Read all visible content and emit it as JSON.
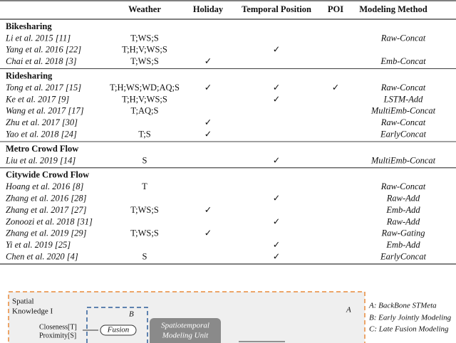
{
  "table": {
    "header": {
      "weather": "Weather",
      "holiday": "Holiday",
      "temporal": "Temporal Position",
      "poi": "POI",
      "method": "Modeling Method"
    },
    "sections": [
      {
        "title": "Bikesharing",
        "rows": [
          {
            "ref": "Li et al. 2015 [11]",
            "weather": "T;WS;S",
            "method": "Raw-Concat"
          },
          {
            "ref": "Yang et al. 2016 [22]",
            "weather": "T;H;V;WS;S",
            "temporal": "✓"
          },
          {
            "ref": "Chai et al. 2018 [3]",
            "weather": "T;WS;S",
            "holiday": "✓",
            "method": "Emb-Concat"
          }
        ]
      },
      {
        "title": "Ridesharing",
        "rows": [
          {
            "ref": "Tong et al. 2017 [15]",
            "weather": "T;H;WS;WD;AQ;S",
            "holiday": "✓",
            "temporal": "✓",
            "poi": "✓",
            "method": "Raw-Concat"
          },
          {
            "ref": "Ke et al. 2017 [9]",
            "weather": "T;H;V;WS;S",
            "temporal": "✓",
            "method": "LSTM-Add"
          },
          {
            "ref": "Wang et al. 2017 [17]",
            "weather": "T;AQ;S",
            "method": "MultiEmb-Concat"
          },
          {
            "ref": "Zhu et al. 2017 [30]",
            "holiday": "✓",
            "method": "Raw-Concat"
          },
          {
            "ref": "Yao et al. 2018 [24]",
            "weather": "T;S",
            "holiday": "✓",
            "method": "EarlyConcat"
          }
        ]
      },
      {
        "title": "Metro Crowd Flow",
        "rows": [
          {
            "ref": "Liu et al. 2019 [14]",
            "weather": "S",
            "temporal": "✓",
            "method": "MultiEmb-Concat"
          }
        ]
      },
      {
        "title": "Citywide Crowd Flow",
        "rows": [
          {
            "ref": "Hoang et al. 2016 [8]",
            "weather": "T",
            "method": "Raw-Concat"
          },
          {
            "ref": "Zhang et al. 2016 [28]",
            "temporal": "✓",
            "method": "Raw-Add"
          },
          {
            "ref": "Zhang et al. 2017 [27]",
            "weather": "T;WS;S",
            "holiday": "✓",
            "method": "Emb-Add"
          },
          {
            "ref": "Zonoozi et al. 2018 [31]",
            "temporal": "✓",
            "method": "Raw-Add"
          },
          {
            "ref": "Zhang et al. 2019 [29]",
            "weather": "T;WS;S",
            "holiday": "✓",
            "method": "Raw-Gating"
          },
          {
            "ref": "Yi et al. 2019 [25]",
            "temporal": "✓",
            "method": "Emb-Add"
          },
          {
            "ref": "Chen et al. 2020 [4]",
            "weather": "S",
            "temporal": "✓",
            "method": "EarlyConcat"
          }
        ]
      }
    ]
  },
  "diagram": {
    "spatial": "Spatial",
    "knowledge": "Knowledge I",
    "label_a": "A",
    "label_b": "B",
    "closeness": "Closeness[T]",
    "proximity": "Proximity[S]",
    "fusion": "Fusion",
    "unit_line1": "Spatiotemporal",
    "unit_line2": "Modeling Unit",
    "legend": [
      "A: BackBone STMeta",
      "B: Early Jointly Modeling",
      "C: Late Fusion Modeling"
    ]
  }
}
